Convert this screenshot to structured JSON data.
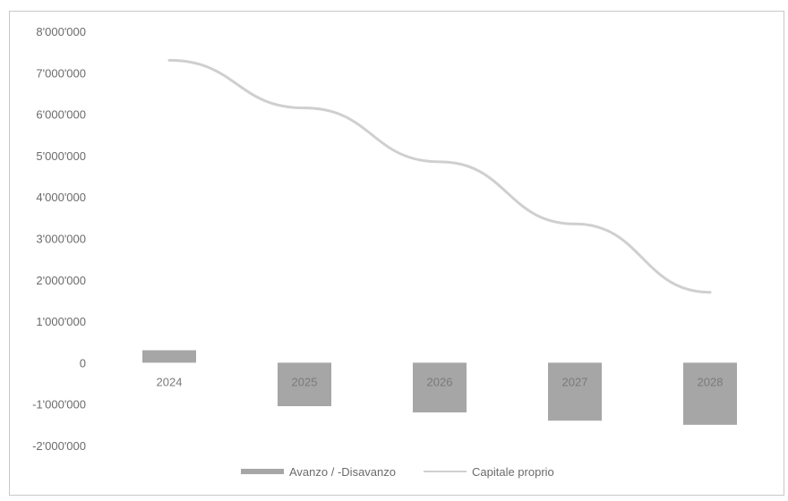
{
  "chart_data": {
    "type": "bar",
    "title": "",
    "xlabel": "",
    "ylabel": "",
    "categories": [
      "2024",
      "2025",
      "2026",
      "2027",
      "2028"
    ],
    "ylim": [
      -2000000,
      8000000
    ],
    "yticks": [
      "8'000'000",
      "7'000'000",
      "6'000'000",
      "5'000'000",
      "4'000'000",
      "3'000'000",
      "2'000'000",
      "1'000'000",
      "0",
      "-1'000'000",
      "-2'000'000"
    ],
    "ytick_values": [
      8000000,
      7000000,
      6000000,
      5000000,
      4000000,
      3000000,
      2000000,
      1000000,
      0,
      -1000000,
      -2000000
    ],
    "grid": false,
    "legend": "bottom",
    "series": [
      {
        "name": "Avanzo / -Disavanzo",
        "type": "bar",
        "color": "#a6a6a6",
        "values": [
          300000,
          -1050000,
          -1200000,
          -1400000,
          -1500000
        ]
      },
      {
        "name": "Capitale proprio",
        "type": "line",
        "color": "#cfcfcf",
        "values": [
          7300000,
          6150000,
          4850000,
          3350000,
          1700000
        ]
      }
    ]
  }
}
